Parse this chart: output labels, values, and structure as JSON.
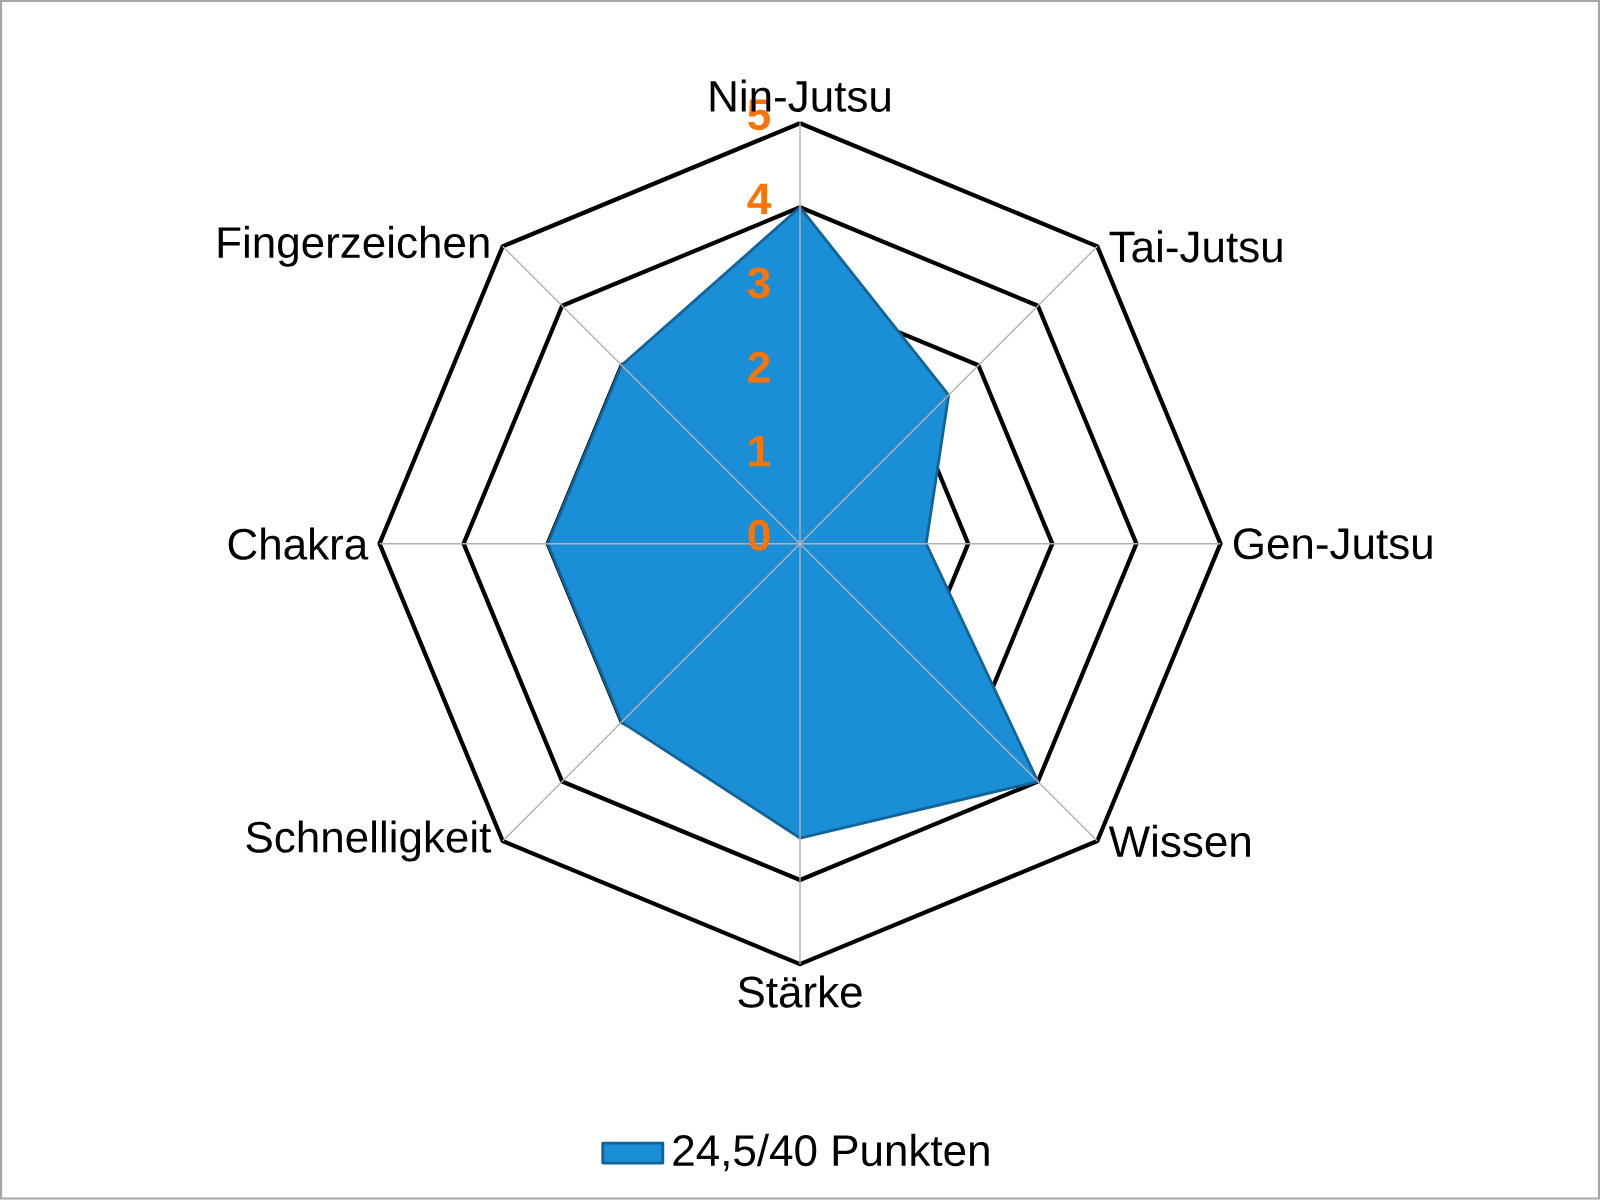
{
  "chart_data": {
    "type": "radar",
    "categories": [
      "Nin-Jutsu",
      "Tai-Jutsu",
      "Gen-Jutsu",
      "Wissen",
      "Stärke",
      "Schnelligkeit",
      "Chakra",
      "Fingerzeichen"
    ],
    "series": [
      {
        "name": "24,5/40 Punkten",
        "color": "#1a8fd8",
        "values": [
          4,
          2.5,
          1.5,
          4,
          3.5,
          3,
          3,
          3
        ]
      }
    ],
    "ylim": [
      0,
      5
    ],
    "yticks": [
      0,
      1,
      2,
      3,
      4,
      5
    ],
    "grid": true,
    "legend": "bottom"
  }
}
